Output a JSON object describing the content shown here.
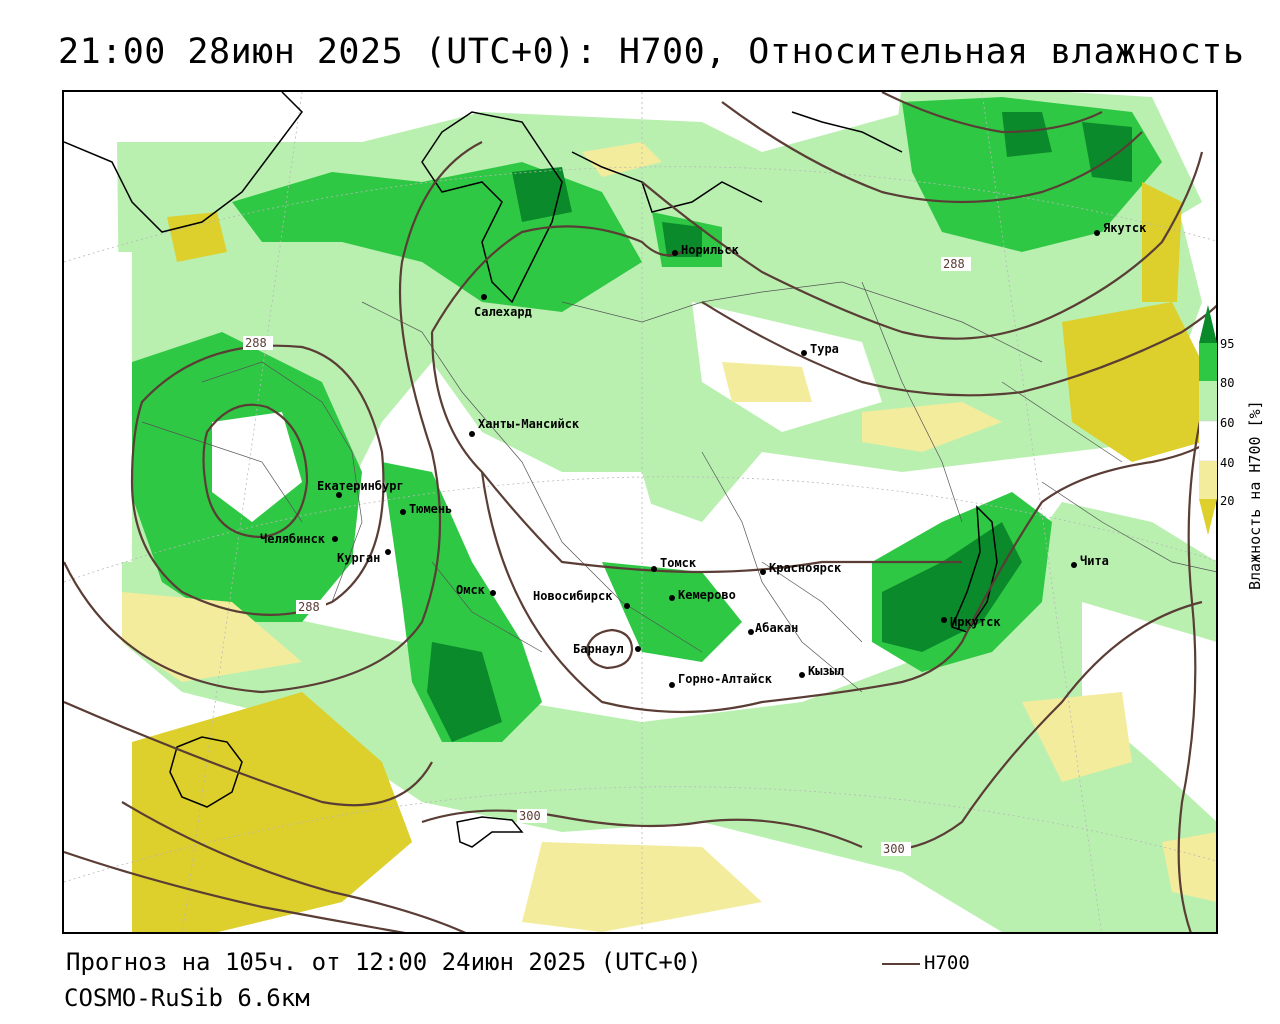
{
  "title": "21:00 28июн 2025 (UTC+0): H700, Относительная влажность",
  "forecast_line": "Прогноз на 105ч. от 12:00 24июн 2025 (UTC+0)",
  "model_line": "COSMO-RuSib 6.6км",
  "legend": {
    "line_label": "H700",
    "line_color": "#5a3d35"
  },
  "colorbar": {
    "title": "Влажность на H700 [%]",
    "ticks": [
      "95",
      "80",
      "60",
      "40",
      "20"
    ],
    "colors": {
      "very_high": "#0a8a2a",
      "high": "#2fc844",
      "medium": "#b9f0b0",
      "none": "#ffffff",
      "low": "#f3ec9c",
      "very_low": "#ddcf2c"
    }
  },
  "cities": [
    {
      "name": "Якутск"
    },
    {
      "name": "Норильск"
    },
    {
      "name": "Салехард"
    },
    {
      "name": "Тура"
    },
    {
      "name": "Ханты-Мансийск"
    },
    {
      "name": "Екатеринбург"
    },
    {
      "name": "Тюмень"
    },
    {
      "name": "Челябинск"
    },
    {
      "name": "Курган"
    },
    {
      "name": "Омск"
    },
    {
      "name": "Новосибирск"
    },
    {
      "name": "Томск"
    },
    {
      "name": "Красноярск"
    },
    {
      "name": "Кемерово"
    },
    {
      "name": "Барнаул"
    },
    {
      "name": "Абакан"
    },
    {
      "name": "Горно-Алтайск"
    },
    {
      "name": "Кызыл"
    },
    {
      "name": "Иркутск"
    },
    {
      "name": "Чита"
    }
  ],
  "isolines": [
    {
      "label": "288"
    },
    {
      "label": "288"
    },
    {
      "label": "288"
    },
    {
      "label": "300"
    },
    {
      "label": "300"
    }
  ]
}
